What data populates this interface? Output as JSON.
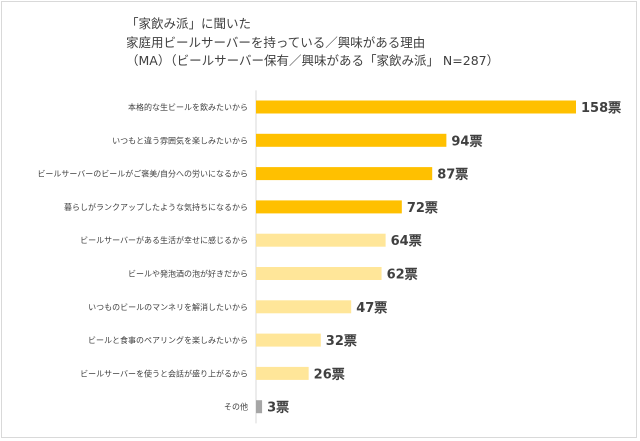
{
  "chart_data": {
    "type": "bar",
    "orientation": "horizontal",
    "title_lines": [
      "「家飲み派」に聞いた",
      "家庭用ビールサーバーを持っている／興味がある理由",
      "（MA）（ビールサーバー保有／興味がある「家飲み派」 N=287）"
    ],
    "value_suffix": "票",
    "categories": [
      "本格的な生ビールを飲みたいから",
      "いつもと違う雰囲気を楽しみたいから",
      "ビールサーバーのビールがご褒美/自分への労いになるから",
      "暮らしがランクアップしたような気持ちになるから",
      "ビールサーバーがある生活が幸せに感じるから",
      "ビールや発泡酒の泡が好きだから",
      "いつものビールのマンネリを解消したいから",
      "ビールと食事のペアリングを楽しみたいから",
      "ビールサーバーを使うと会話が盛り上がるから",
      "その他"
    ],
    "values": [
      158,
      94,
      87,
      72,
      64,
      62,
      47,
      32,
      26,
      3
    ],
    "bar_colors": [
      "#ffc000",
      "#ffc000",
      "#ffc000",
      "#ffc000",
      "#ffe699",
      "#ffe699",
      "#ffe699",
      "#ffe699",
      "#ffe699",
      "#a6a6a6"
    ],
    "grid": false,
    "legend": "none"
  }
}
